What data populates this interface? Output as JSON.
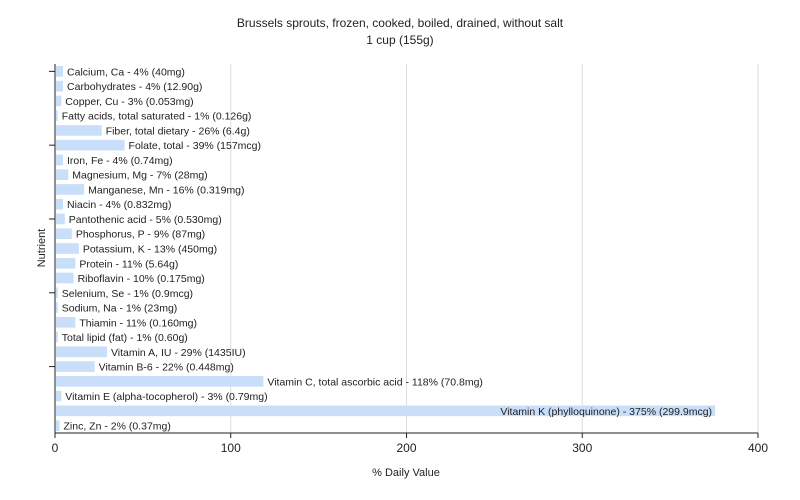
{
  "colors": {
    "bar": "#c9def8",
    "grid": "#dddddd",
    "axis": "#222222",
    "background": "#ffffff"
  },
  "chart_data": {
    "type": "bar",
    "orientation": "horizontal",
    "title": "Brussels sprouts, frozen, cooked, boiled, drained, without salt",
    "subtitle": "1 cup (155g)",
    "xlabel": "% Daily Value",
    "ylabel": "Nutrient",
    "xlim": [
      0,
      400
    ],
    "xticks": [
      0,
      100,
      200,
      300,
      400
    ],
    "grid": true,
    "legend": "none",
    "categories": [
      "Calcium, Ca",
      "Carbohydrates",
      "Copper, Cu",
      "Fatty acids, total saturated",
      "Fiber, total dietary",
      "Folate, total",
      "Iron, Fe",
      "Magnesium, Mg",
      "Manganese, Mn",
      "Niacin",
      "Pantothenic acid",
      "Phosphorus, P",
      "Potassium, K",
      "Protein",
      "Riboflavin",
      "Selenium, Se",
      "Sodium, Na",
      "Thiamin",
      "Total lipid (fat)",
      "Vitamin A, IU",
      "Vitamin B-6",
      "Vitamin C, total ascorbic acid",
      "Vitamin E (alpha-tocopherol)",
      "Vitamin K (phylloquinone)",
      "Zinc, Zn"
    ],
    "values": [
      4,
      4,
      3,
      1,
      26,
      39,
      4,
      7,
      16,
      4,
      5,
      9,
      13,
      11,
      10,
      1,
      1,
      11,
      1,
      29,
      22,
      118,
      3,
      375,
      2
    ],
    "amounts": [
      "40mg",
      "12.90g",
      "0.053mg",
      "0.126g",
      "6.4g",
      "157mcg",
      "0.74mg",
      "28mg",
      "0.319mg",
      "0.832mg",
      "0.530mg",
      "87mg",
      "450mg",
      "5.64g",
      "0.175mg",
      "0.9mcg",
      "23mg",
      "0.160mg",
      "0.60g",
      "1435IU",
      "0.448mg",
      "70.8mg",
      "0.79mg",
      "299.9mcg",
      "0.37mg"
    ],
    "labels": [
      "Calcium, Ca - 4% (40mg)",
      "Carbohydrates - 4% (12.90g)",
      "Copper, Cu - 3% (0.053mg)",
      "Fatty acids, total saturated - 1% (0.126g)",
      "Fiber, total dietary - 26% (6.4g)",
      "Folate, total - 39% (157mcg)",
      "Iron, Fe - 4% (0.74mg)",
      "Magnesium, Mg - 7% (28mg)",
      "Manganese, Mn - 16% (0.319mg)",
      "Niacin - 4% (0.832mg)",
      "Pantothenic acid - 5% (0.530mg)",
      "Phosphorus, P - 9% (87mg)",
      "Potassium, K - 13% (450mg)",
      "Protein - 11% (5.64g)",
      "Riboflavin - 10% (0.175mg)",
      "Selenium, Se - 1% (0.9mcg)",
      "Sodium, Na - 1% (23mg)",
      "Thiamin - 11% (0.160mg)",
      "Total lipid (fat) - 1% (0.60g)",
      "Vitamin A, IU - 29% (1435IU)",
      "Vitamin B-6 - 22% (0.448mg)",
      "Vitamin C, total ascorbic acid - 118% (70.8mg)",
      "Vitamin E (alpha-tocopherol) - 3% (0.79mg)",
      "Vitamin K (phylloquinone) - 375% (299.9mcg)",
      "Zinc, Zn - 2% (0.37mg)"
    ]
  }
}
